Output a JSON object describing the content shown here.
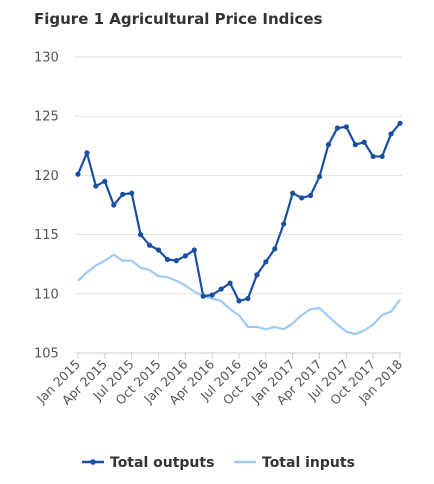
{
  "chart_data": {
    "type": "line",
    "title": "Figure 1 Agricultural Price Indices",
    "xlabel": "",
    "ylabel": "",
    "ylim": [
      105,
      130
    ],
    "yticks": [
      105,
      110,
      115,
      120,
      125,
      130
    ],
    "grid": true,
    "legend_position": "bottom",
    "x": [
      "Jan 2015",
      "Feb 2015",
      "Mar 2015",
      "Apr 2015",
      "May 2015",
      "Jun 2015",
      "Jul 2015",
      "Aug 2015",
      "Sep 2015",
      "Oct 2015",
      "Nov 2015",
      "Dec 2015",
      "Jan 2016",
      "Feb 2016",
      "Mar 2016",
      "Apr 2016",
      "May 2016",
      "Jun 2016",
      "Jul 2016",
      "Aug 2016",
      "Sep 2016",
      "Oct 2016",
      "Nov 2016",
      "Dec 2016",
      "Jan 2017",
      "Feb 2017",
      "Mar 2017",
      "Apr 2017",
      "May 2017",
      "Jun 2017",
      "Jul 2017",
      "Aug 2017",
      "Sep 2017",
      "Oct 2017",
      "Nov 2017",
      "Dec 2017",
      "Jan 2018"
    ],
    "x_tick_labels": [
      "Jan 2015",
      "Apr 2015",
      "Jul 2015",
      "Oct 2015",
      "Jan 2016",
      "Apr 2016",
      "Jul 2016",
      "Oct 2016",
      "Jan 2017",
      "Apr 2017",
      "Jul 2017",
      "Oct 2017",
      "Jan 2018"
    ],
    "series": [
      {
        "name": "Total outputs",
        "color": "#1a4fa0",
        "values": [
          120.1,
          121.9,
          119.1,
          119.5,
          117.5,
          118.4,
          118.5,
          115.0,
          114.1,
          113.7,
          112.9,
          112.8,
          113.2,
          113.7,
          109.8,
          109.9,
          110.4,
          110.9,
          109.4,
          109.6,
          111.6,
          112.7,
          113.8,
          115.9,
          118.5,
          118.1,
          118.3,
          119.9,
          122.6,
          124.0,
          124.1,
          122.6,
          122.8,
          121.6,
          121.6,
          123.5,
          124.4
        ]
      },
      {
        "name": "Total inputs",
        "color": "#9fcbf2",
        "values": [
          111.1,
          111.8,
          112.4,
          112.8,
          113.3,
          112.8,
          112.8,
          112.2,
          112.0,
          111.5,
          111.4,
          111.1,
          110.7,
          110.2,
          109.8,
          109.6,
          109.4,
          108.7,
          108.2,
          107.2,
          107.2,
          107.0,
          107.2,
          107.0,
          107.5,
          108.2,
          108.7,
          108.8,
          108.1,
          107.4,
          106.8,
          106.6,
          106.9,
          107.4,
          108.2,
          108.5,
          109.5
        ]
      }
    ]
  }
}
